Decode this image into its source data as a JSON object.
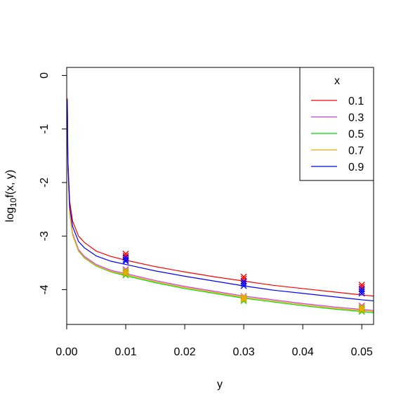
{
  "chart_data": {
    "type": "line",
    "xlabel": "y",
    "ylabel_main": "log",
    "ylabel_sub": "10",
    "ylabel_rest": "f(x, y)",
    "xlim": [
      0.0,
      0.052
    ],
    "ylim": [
      -4.65,
      0.15
    ],
    "x_ticks": [
      {
        "value": 0.0,
        "label": "0.00"
      },
      {
        "value": 0.01,
        "label": "0.01"
      },
      {
        "value": 0.02,
        "label": "0.02"
      },
      {
        "value": 0.03,
        "label": "0.03"
      },
      {
        "value": 0.04,
        "label": "0.04"
      },
      {
        "value": 0.05,
        "label": "0.05"
      }
    ],
    "y_ticks": [
      {
        "value": 0,
        "label": "0"
      },
      {
        "value": -1,
        "label": "-1"
      },
      {
        "value": -2,
        "label": "-2"
      },
      {
        "value": -3,
        "label": "-3"
      },
      {
        "value": -4,
        "label": "-4"
      }
    ],
    "legend": {
      "title": "x",
      "position": "top-right",
      "entries": [
        "0.1",
        "0.3",
        "0.5",
        "0.7",
        "0.9"
      ]
    },
    "curve_x": [
      0.0001,
      0.0002,
      0.0005,
      0.001,
      0.002,
      0.003,
      0.005,
      0.0075,
      0.01,
      0.015,
      0.02,
      0.025,
      0.03,
      0.035,
      0.04,
      0.045,
      0.05,
      0.052
    ],
    "series": [
      {
        "name": "0.1",
        "color": "#ff0000",
        "curve_y": [
          -0.43,
          -1.55,
          -2.35,
          -2.72,
          -3.0,
          -3.12,
          -3.28,
          -3.38,
          -3.45,
          -3.57,
          -3.67,
          -3.76,
          -3.84,
          -3.92,
          -3.98,
          -4.04,
          -4.1,
          -4.12
        ],
        "points": [
          {
            "x": 0.01,
            "y": [
              -3.33,
              -3.37,
              -3.4
            ]
          },
          {
            "x": 0.03,
            "y": [
              -3.76,
              -3.8,
              -3.84
            ]
          },
          {
            "x": 0.05,
            "y": [
              -3.91,
              -3.95,
              -3.99
            ]
          }
        ]
      },
      {
        "name": "0.3",
        "color": "#bf40ff",
        "curve_y": [
          -0.5,
          -1.7,
          -2.55,
          -2.95,
          -3.25,
          -3.38,
          -3.53,
          -3.64,
          -3.7,
          -3.83,
          -3.94,
          -4.03,
          -4.12,
          -4.19,
          -4.26,
          -4.32,
          -4.37,
          -4.39
        ],
        "points": [
          {
            "x": 0.01,
            "y": [
              -3.62,
              -3.66,
              -3.69
            ]
          },
          {
            "x": 0.03,
            "y": [
              -4.12,
              -4.15,
              -4.18
            ]
          },
          {
            "x": 0.05,
            "y": [
              -4.3,
              -4.34,
              -4.37
            ]
          }
        ]
      },
      {
        "name": "0.5",
        "color": "#00e000",
        "curve_y": [
          -0.52,
          -1.73,
          -2.58,
          -2.98,
          -3.28,
          -3.41,
          -3.56,
          -3.67,
          -3.74,
          -3.87,
          -3.98,
          -4.07,
          -4.16,
          -4.23,
          -4.3,
          -4.36,
          -4.41,
          -4.43
        ],
        "points": [
          {
            "x": 0.01,
            "y": [
              -3.66,
              -3.7,
              -3.73
            ]
          },
          {
            "x": 0.03,
            "y": [
              -4.15,
              -4.18,
              -4.21
            ]
          },
          {
            "x": 0.05,
            "y": [
              -4.34,
              -4.38,
              -4.41
            ]
          }
        ]
      },
      {
        "name": "0.7",
        "color": "#ffa500",
        "curve_y": [
          -0.51,
          -1.72,
          -2.57,
          -2.97,
          -3.27,
          -3.4,
          -3.55,
          -3.66,
          -3.72,
          -3.85,
          -3.96,
          -4.05,
          -4.14,
          -4.21,
          -4.28,
          -4.34,
          -4.39,
          -4.41
        ],
        "points": [
          {
            "x": 0.01,
            "y": [
              -3.64,
              -3.68,
              -3.71
            ]
          },
          {
            "x": 0.03,
            "y": [
              -4.13,
              -4.16,
              -4.19
            ]
          },
          {
            "x": 0.05,
            "y": [
              -4.32,
              -4.36,
              -4.39
            ]
          }
        ]
      },
      {
        "name": "0.9",
        "color": "#0000ff",
        "curve_y": [
          -0.46,
          -1.62,
          -2.44,
          -2.82,
          -3.1,
          -3.22,
          -3.37,
          -3.47,
          -3.53,
          -3.65,
          -3.75,
          -3.84,
          -3.93,
          -4.01,
          -4.07,
          -4.13,
          -4.19,
          -4.21
        ],
        "points": [
          {
            "x": 0.01,
            "y": [
              -3.4,
              -3.44,
              -3.47
            ]
          },
          {
            "x": 0.03,
            "y": [
              -3.85,
              -3.89,
              -3.93
            ]
          },
          {
            "x": 0.05,
            "y": [
              -3.99,
              -4.03,
              -4.07
            ]
          }
        ]
      }
    ]
  }
}
